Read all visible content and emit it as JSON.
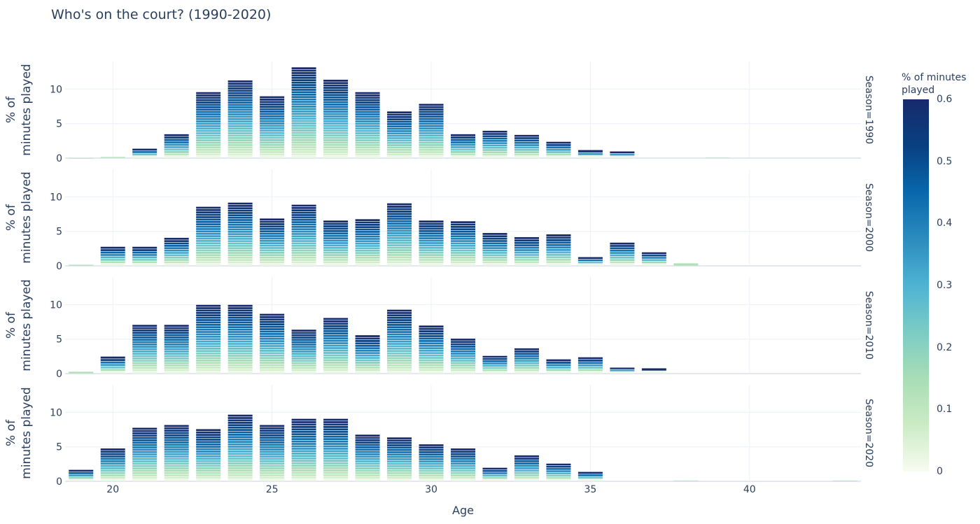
{
  "chart_data": {
    "type": "bar",
    "title": "Who's on the court? (1990-2020)",
    "xlabel": "Age",
    "ylabel": "% of minutes played",
    "x_ticks": [
      20,
      25,
      30,
      35,
      40
    ],
    "xlim": [
      18.5,
      43.5
    ],
    "y_ticks": [
      0,
      5,
      10
    ],
    "ylim": [
      0,
      14
    ],
    "grid": true,
    "stacked": true,
    "colorbar": {
      "title": "% of minutes played",
      "range": [
        0,
        0.6
      ],
      "ticks": [
        0,
        0.1,
        0.2,
        0.3,
        0.4,
        0.5,
        0.6
      ],
      "colorscale": [
        "#f7fcf0",
        "#ccebc5",
        "#a8ddb5",
        "#7bccc4",
        "#4eb3d3",
        "#2b8cbe",
        "#0868ac",
        "#084081",
        "#172a6b"
      ]
    },
    "facets": [
      {
        "label": "Season=1990",
        "categories": [
          19,
          20,
          21,
          22,
          23,
          24,
          25,
          26,
          27,
          28,
          29,
          30,
          31,
          32,
          33,
          34,
          35,
          36,
          37,
          38,
          39,
          40,
          41,
          42,
          43
        ],
        "values": [
          0.05,
          0.2,
          1.4,
          3.5,
          9.6,
          11.3,
          9.0,
          13.2,
          11.4,
          9.6,
          6.8,
          7.9,
          3.5,
          4.0,
          3.4,
          2.4,
          1.2,
          1.0,
          0,
          0,
          0.1,
          0,
          0,
          0,
          0
        ]
      },
      {
        "label": "Season=2000",
        "categories": [
          19,
          20,
          21,
          22,
          23,
          24,
          25,
          26,
          27,
          28,
          29,
          30,
          31,
          32,
          33,
          34,
          35,
          36,
          37,
          38,
          39,
          40,
          41,
          42,
          43
        ],
        "values": [
          0.2,
          2.8,
          2.8,
          4.1,
          8.6,
          9.2,
          6.9,
          8.9,
          6.6,
          6.8,
          9.1,
          6.6,
          6.5,
          4.8,
          4.2,
          4.6,
          1.3,
          3.4,
          2.0,
          0.4,
          0,
          0,
          0,
          0,
          0
        ]
      },
      {
        "label": "Season=2010",
        "categories": [
          19,
          20,
          21,
          22,
          23,
          24,
          25,
          26,
          27,
          28,
          29,
          30,
          31,
          32,
          33,
          34,
          35,
          36,
          37,
          38,
          39,
          40,
          41,
          42,
          43
        ],
        "values": [
          0.3,
          2.5,
          7.1,
          7.1,
          10.0,
          10.0,
          8.7,
          6.4,
          8.1,
          5.6,
          9.3,
          7.0,
          5.1,
          2.6,
          3.7,
          2.1,
          2.4,
          0.9,
          0.8,
          0,
          0,
          0,
          0,
          0,
          0
        ]
      },
      {
        "label": "Season=2020",
        "categories": [
          19,
          20,
          21,
          22,
          23,
          24,
          25,
          26,
          27,
          28,
          29,
          30,
          31,
          32,
          33,
          34,
          35,
          36,
          37,
          38,
          39,
          40,
          41,
          42,
          43
        ],
        "values": [
          1.7,
          4.8,
          7.8,
          8.2,
          7.6,
          9.7,
          8.2,
          9.1,
          9.1,
          6.8,
          6.4,
          5.4,
          4.8,
          2.0,
          3.8,
          2.6,
          1.4,
          0,
          0,
          0.15,
          0,
          0,
          0,
          0,
          0.15
        ]
      }
    ]
  }
}
